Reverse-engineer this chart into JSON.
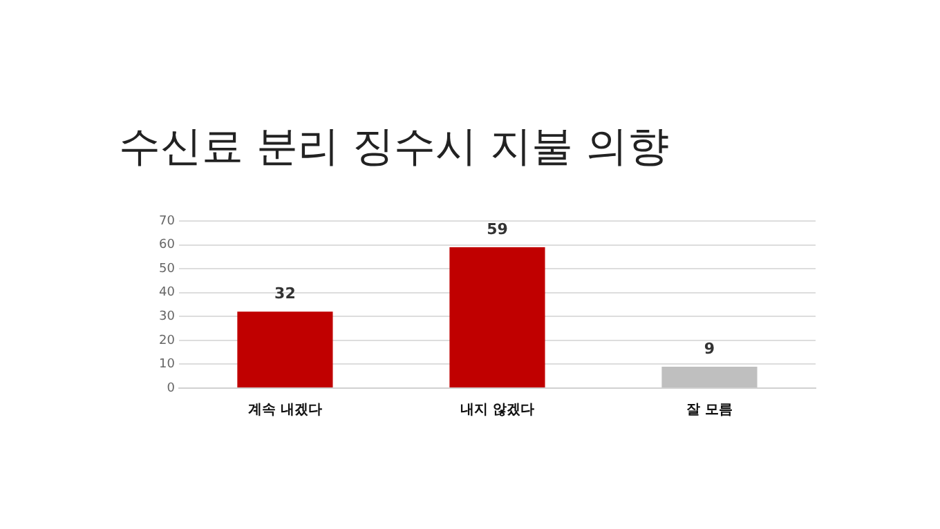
{
  "chart_data": {
    "type": "bar",
    "title": "수신료 분리 징수시 지불 의향",
    "categories": [
      "계속 내겠다",
      "내지 않겠다",
      "잘 모름"
    ],
    "values": [
      32,
      59,
      9
    ],
    "colors": [
      "#c00000",
      "#c00000",
      "#bfbfbf"
    ],
    "ylim": [
      0,
      70
    ],
    "yticks": [
      0,
      10,
      20,
      30,
      40,
      50,
      60,
      70
    ],
    "grid": "y",
    "data_labels": true,
    "legend": false
  }
}
